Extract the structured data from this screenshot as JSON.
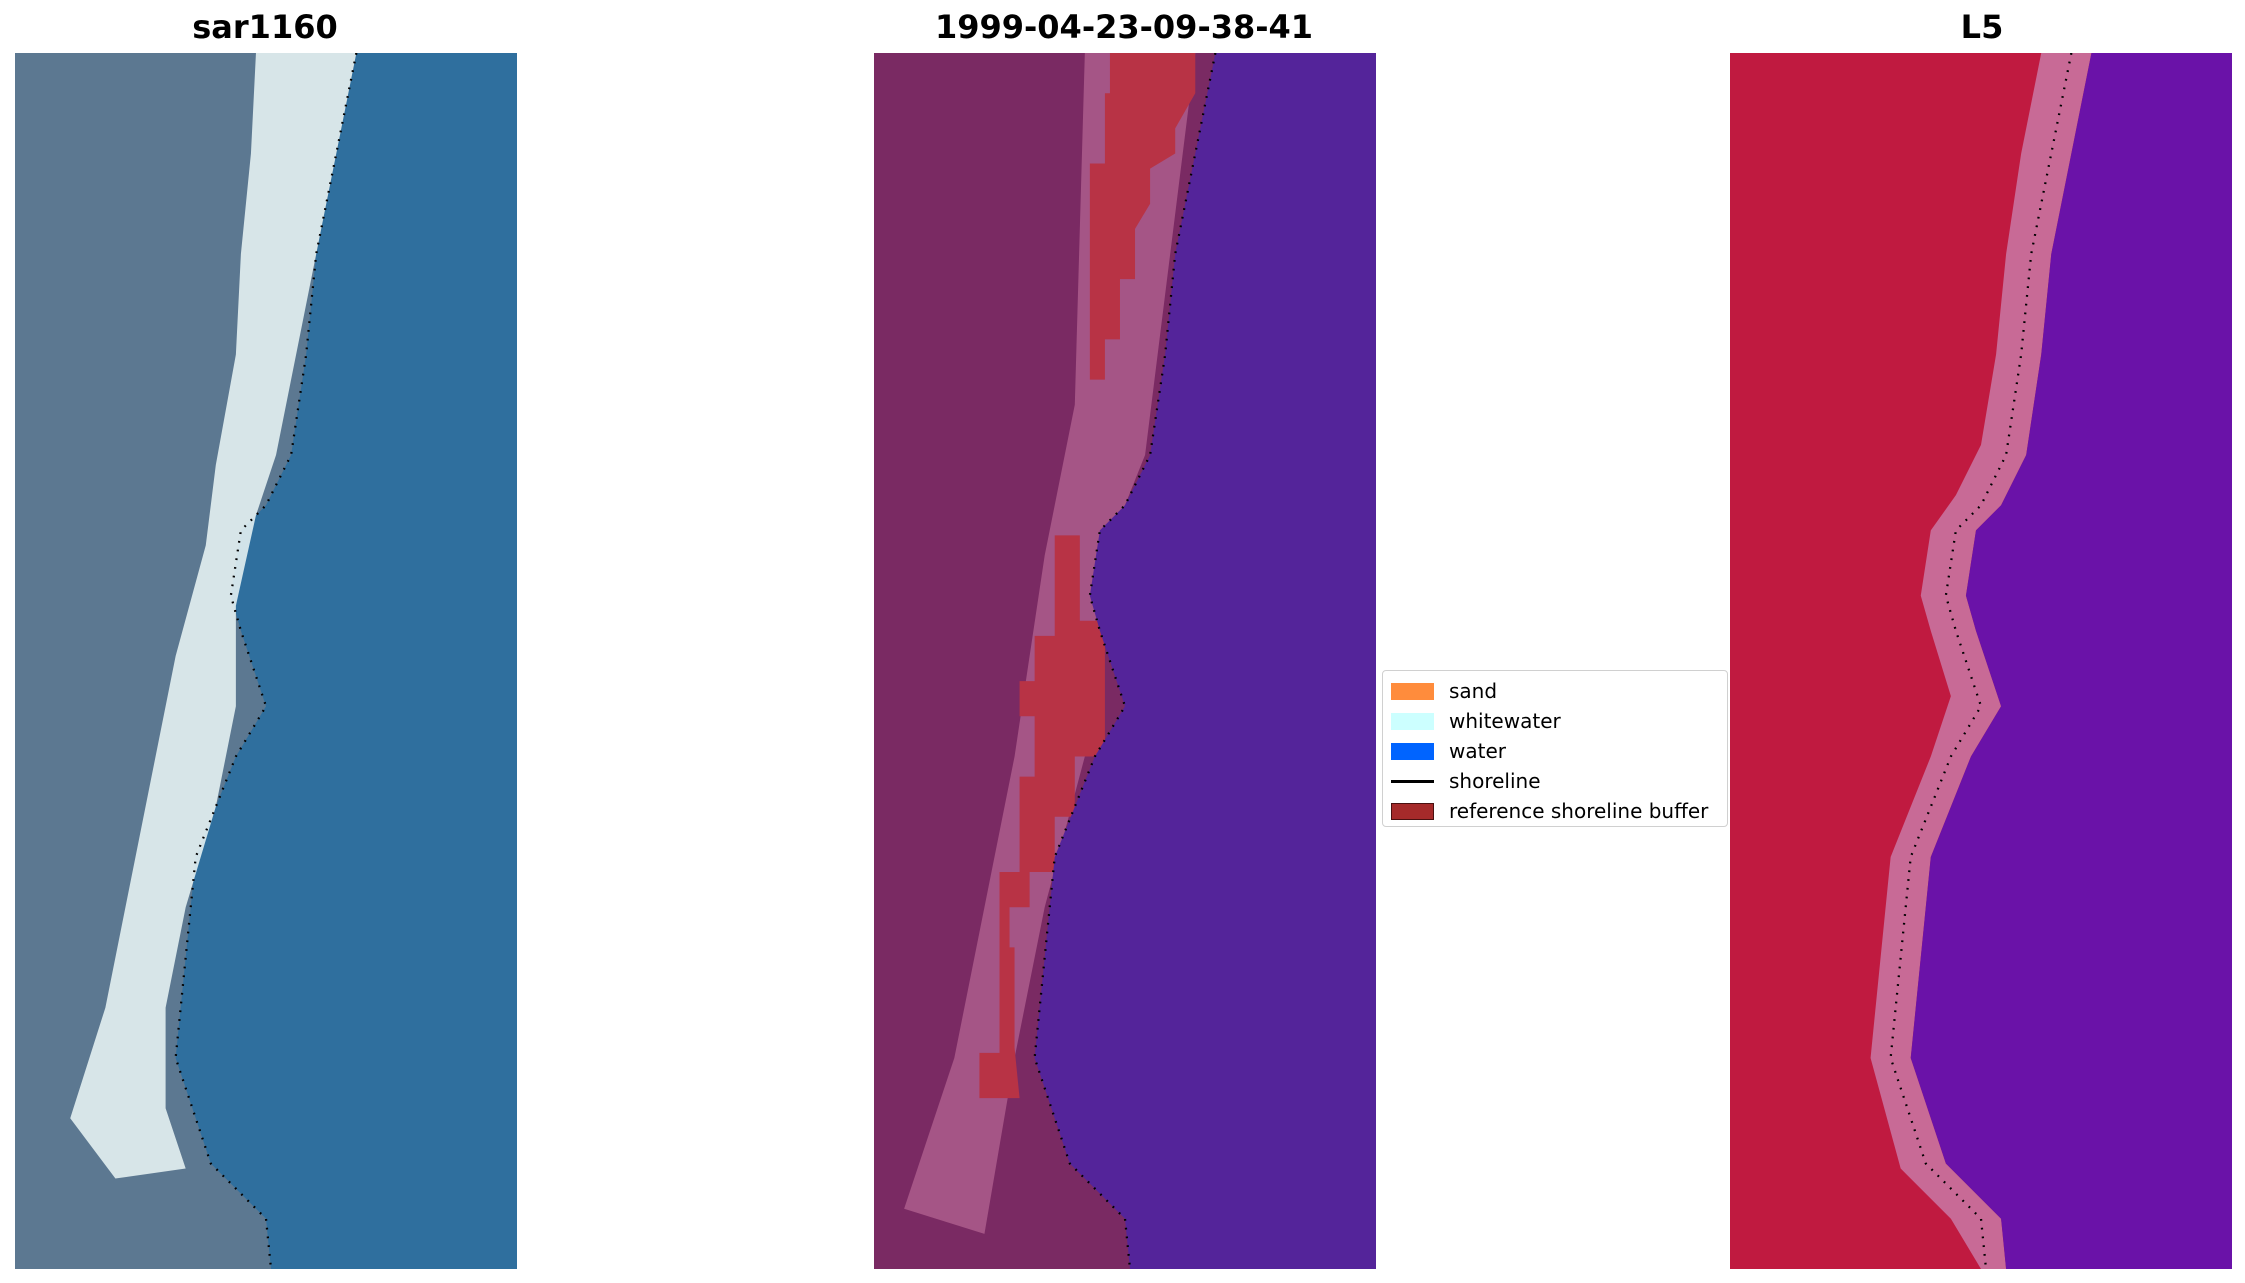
{
  "panels": [
    {
      "title": "sar1160",
      "kind": "rgb"
    },
    {
      "title": "1999-04-23-09-38-41",
      "kind": "classified"
    },
    {
      "title": "L5",
      "kind": "index"
    }
  ],
  "legend": {
    "items": [
      {
        "label": "sand",
        "color": "#ff8c3c",
        "type": "patch"
      },
      {
        "label": "whitewater",
        "color": "#ccffff",
        "type": "patch"
      },
      {
        "label": "water",
        "color": "#0064ff",
        "type": "patch"
      },
      {
        "label": "shoreline",
        "color": "#000000",
        "type": "line"
      },
      {
        "label": "reference shoreline buffer",
        "color": "#a52a2a",
        "type": "patch"
      }
    ]
  },
  "colors": {
    "rgb_land": "#5c7891",
    "rgb_beach": "#e8f4f4",
    "rgb_water": "#2f6f9e",
    "class_land": "#7a2a63",
    "class_beach": "#b0608f",
    "class_buffer": "#b83345",
    "class_water": "#54249a",
    "index_land": "#c01a40",
    "index_edge": "#c86a96",
    "index_water": "#6a12a8",
    "shoreline": "#000000"
  }
}
